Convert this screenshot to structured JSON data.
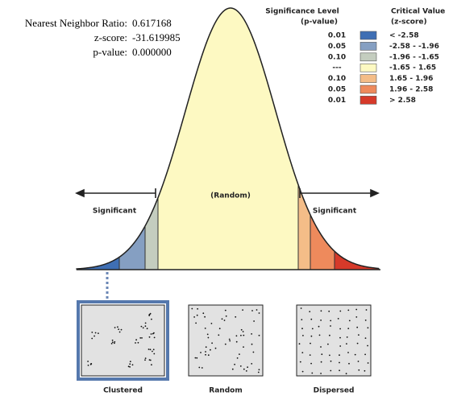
{
  "stats": [
    {
      "label": "Nearest Neighbor Ratio:",
      "value": "0.617168"
    },
    {
      "label": "z-score:",
      "value": "-31.619985"
    },
    {
      "label": "p-value:",
      "value": "0.000000"
    }
  ],
  "legend": {
    "p_header": "Significance Level",
    "p_sub": "(p-value)",
    "z_header": "Critical Value",
    "z_sub": "(z-score)",
    "rows": [
      {
        "p_value": "0.01",
        "critical_value": "< -2.58",
        "color": "#3f6fb4"
      },
      {
        "p_value": "0.05",
        "critical_value": "-2.58 - -1.96",
        "color": "#859fc2"
      },
      {
        "p_value": "0.10",
        "critical_value": "-1.96 - -1.65",
        "color": "#c4cdbf"
      },
      {
        "p_value": "---",
        "critical_value": "-1.65 - 1.65",
        "color": "#fdf9c2"
      },
      {
        "p_value": "0.10",
        "critical_value": "1.65 - 1.96",
        "color": "#f4bd88"
      },
      {
        "p_value": "0.05",
        "critical_value": "1.96 - 2.58",
        "color": "#ee8a5c"
      },
      {
        "p_value": "0.01",
        "critical_value": "> 2.58",
        "color": "#d63a2a"
      }
    ]
  },
  "curve": {
    "center_label": "(Random)",
    "left_label": "Significant",
    "right_label": "Significant"
  },
  "panels": [
    "Clustered",
    "Random",
    "Dispersed"
  ]
}
